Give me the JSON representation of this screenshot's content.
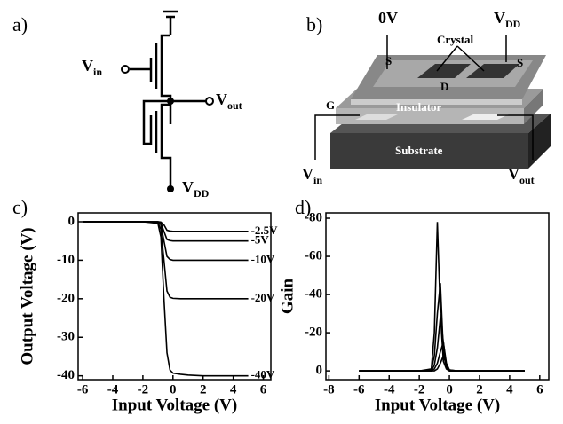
{
  "panels": {
    "a": "a)",
    "b": "b)",
    "c": "c)",
    "d": "d)"
  },
  "circuit": {
    "vin": {
      "main": "V",
      "sub": "in"
    },
    "vout": {
      "main": "V",
      "sub": "out"
    },
    "vdd": {
      "main": "V",
      "sub": "DD"
    }
  },
  "device": {
    "source_voltage": "0V",
    "vdd": {
      "main": "V",
      "sub": "DD"
    },
    "crystal": "Crystal",
    "source": "S",
    "source2": "S",
    "drain": "D",
    "gate": "G",
    "insulator": "Insulator",
    "substrate": "Substrate",
    "vin": {
      "main": "V",
      "sub": "in"
    },
    "vout": {
      "main": "V",
      "sub": "out"
    }
  },
  "chart_data": [
    {
      "type": "line",
      "x_label": "Input Voltage (V)",
      "y_label": "Output Voltage (V)",
      "color": "#000000",
      "x": [
        -6,
        -2,
        -1,
        -0.8,
        -0.6,
        -0.4,
        -0.2,
        0,
        0.5,
        1,
        2,
        3,
        4,
        5
      ],
      "series": [
        {
          "name": "-2.5V",
          "values": [
            0,
            0,
            0,
            -0.1,
            -0.8,
            -2.2,
            -2.4,
            -2.5,
            -2.5,
            -2.5,
            -2.5,
            -2.5,
            -2.5,
            -2.5
          ]
        },
        {
          "name": "-5V",
          "values": [
            0,
            0,
            0,
            -0.3,
            -2.5,
            -4.6,
            -4.9,
            -5,
            -5,
            -5,
            -5,
            -5,
            -5,
            -5
          ]
        },
        {
          "name": "-10V",
          "values": [
            0,
            0,
            -0.1,
            -0.8,
            -5,
            -9,
            -9.8,
            -10,
            -10,
            -10,
            -10,
            -10,
            -10,
            -10
          ]
        },
        {
          "name": "-20V",
          "values": [
            0,
            0,
            -0.2,
            -2,
            -10,
            -18,
            -19.6,
            -19.9,
            -20,
            -20,
            -20,
            -20,
            -20,
            -20
          ]
        },
        {
          "name": "-40V",
          "values": [
            0,
            0,
            -0.4,
            -4,
            -20,
            -34,
            -38.5,
            -39.3,
            -39.6,
            -39.8,
            -40,
            -40,
            -40,
            -40
          ]
        }
      ],
      "xlim": [
        -6.3,
        6.5
      ],
      "ylim": [
        -41,
        2.3
      ],
      "xticks": [
        -6,
        -4,
        -2,
        0,
        2,
        4,
        6
      ],
      "yticks": [
        0,
        -10,
        -20,
        -30,
        -40
      ]
    },
    {
      "type": "line",
      "x_label": "Input Voltage (V)",
      "y_label": "Gain",
      "color": "#000000",
      "x": [
        -6,
        -2,
        -1.2,
        -1,
        -0.8,
        -0.6,
        -0.4,
        -0.2,
        0,
        0.5,
        1,
        5
      ],
      "series": [
        {
          "values": [
            0,
            0,
            -1,
            -20,
            -78,
            -30,
            -5,
            -1,
            0,
            0,
            0,
            0
          ]
        },
        {
          "values": [
            0,
            0,
            -0.5,
            -8,
            -30,
            -46,
            -10,
            -2,
            0,
            0,
            0,
            0
          ]
        },
        {
          "values": [
            0,
            0,
            0,
            -3,
            -12,
            -28,
            -15,
            -2,
            0,
            0,
            0,
            0
          ]
        },
        {
          "values": [
            0,
            0,
            0,
            -1,
            -4,
            -10,
            -15,
            -4,
            -0.5,
            0,
            0,
            0
          ]
        },
        {
          "values": [
            0,
            0,
            0,
            0,
            -1,
            -4,
            -8,
            -3,
            -0.5,
            0,
            0,
            0
          ]
        }
      ],
      "xlim": [
        -8.2,
        6.6
      ],
      "ylim": [
        4.6,
        -82.8
      ],
      "xticks": [
        -8,
        -6,
        -4,
        -2,
        0,
        2,
        4,
        6
      ],
      "yticks": [
        0,
        -20,
        -40,
        -60,
        -80
      ]
    }
  ]
}
